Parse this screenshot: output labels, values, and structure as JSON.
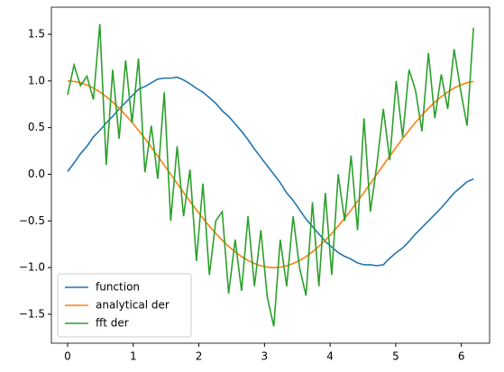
{
  "chart_data": {
    "type": "line",
    "x": [
      0,
      0.098,
      0.196,
      0.295,
      0.393,
      0.491,
      0.589,
      0.687,
      0.785,
      0.884,
      0.982,
      1.08,
      1.178,
      1.276,
      1.374,
      1.473,
      1.571,
      1.669,
      1.767,
      1.865,
      1.963,
      2.062,
      2.16,
      2.258,
      2.356,
      2.454,
      2.553,
      2.651,
      2.749,
      2.847,
      2.945,
      3.043,
      3.142,
      3.24,
      3.338,
      3.436,
      3.534,
      3.633,
      3.731,
      3.829,
      3.927,
      4.025,
      4.123,
      4.222,
      4.32,
      4.418,
      4.516,
      4.614,
      4.712,
      4.811,
      4.909,
      5.007,
      5.105,
      5.203,
      5.301,
      5.4,
      5.498,
      5.596,
      5.694,
      5.792,
      5.89,
      5.989,
      6.087,
      6.185
    ],
    "series": [
      {
        "name": "function",
        "color": "#1f77b4",
        "values": [
          0.03,
          0.12,
          0.22,
          0.3,
          0.4,
          0.47,
          0.55,
          0.62,
          0.7,
          0.77,
          0.84,
          0.91,
          0.94,
          0.98,
          1.02,
          1.03,
          1.03,
          1.04,
          1.01,
          0.97,
          0.92,
          0.88,
          0.82,
          0.76,
          0.68,
          0.62,
          0.54,
          0.46,
          0.37,
          0.27,
          0.18,
          0.09,
          0.0,
          -0.09,
          -0.2,
          -0.28,
          -0.38,
          -0.48,
          -0.56,
          -0.64,
          -0.72,
          -0.78,
          -0.84,
          -0.88,
          -0.91,
          -0.95,
          -0.97,
          -0.97,
          -0.98,
          -0.97,
          -0.9,
          -0.84,
          -0.79,
          -0.72,
          -0.64,
          -0.57,
          -0.5,
          -0.43,
          -0.36,
          -0.28,
          -0.2,
          -0.14,
          -0.08,
          -0.05
        ]
      },
      {
        "name": "analytical der",
        "color": "#ff7f0e",
        "values": [
          1,
          0.995,
          0.981,
          0.957,
          0.924,
          0.882,
          0.831,
          0.773,
          0.707,
          0.634,
          0.556,
          0.471,
          0.383,
          0.29,
          0.195,
          0.098,
          0,
          -0.098,
          -0.195,
          -0.29,
          -0.383,
          -0.471,
          -0.556,
          -0.634,
          -0.707,
          -0.773,
          -0.831,
          -0.882,
          -0.924,
          -0.957,
          -0.981,
          -0.995,
          -1,
          -0.995,
          -0.981,
          -0.957,
          -0.924,
          -0.882,
          -0.831,
          -0.773,
          -0.707,
          -0.634,
          -0.556,
          -0.471,
          -0.383,
          -0.29,
          -0.195,
          -0.098,
          0,
          0.098,
          0.195,
          0.29,
          0.383,
          0.471,
          0.556,
          0.634,
          0.707,
          0.773,
          0.831,
          0.882,
          0.924,
          0.957,
          0.981,
          0.995
        ]
      },
      {
        "name": "fft der",
        "color": "#2ca02c",
        "values": [
          0.85,
          1.17,
          0.95,
          1.05,
          0.8,
          1.61,
          0.1,
          1.12,
          0.38,
          1.22,
          0.55,
          1.24,
          0.02,
          0.52,
          -0.05,
          0.88,
          -0.5,
          0.3,
          -0.45,
          0.05,
          -0.93,
          -0.1,
          -1.08,
          -0.5,
          -0.4,
          -1.28,
          -0.7,
          -1.25,
          -0.45,
          -1.2,
          -0.6,
          -1.32,
          -1.63,
          -0.7,
          -1.2,
          -0.45,
          -1.0,
          -1.3,
          -0.3,
          -1.2,
          -0.2,
          -1.08,
          0.0,
          -0.5,
          0.2,
          -0.6,
          0.6,
          -0.4,
          0.1,
          0.7,
          0.15,
          1.0,
          0.4,
          1.12,
          0.9,
          0.46,
          1.3,
          0.6,
          1.07,
          0.7,
          1.34,
          0.9,
          0.52,
          1.57
        ]
      }
    ],
    "xlim": [
      -0.247,
      6.43
    ],
    "ylim": [
      -1.81,
      1.79
    ],
    "xticks": [
      0,
      1,
      2,
      3,
      4,
      5,
      6
    ],
    "yticks": [
      {
        "value": -1.5,
        "label": "−1.5"
      },
      {
        "value": -1.0,
        "label": "−1.0"
      },
      {
        "value": -0.5,
        "label": "−0.5"
      },
      {
        "value": 0,
        "label": "0.0"
      },
      {
        "value": 0.5,
        "label": "0.5"
      },
      {
        "value": 1.0,
        "label": "1.0"
      },
      {
        "value": 1.5,
        "label": "1.5"
      }
    ],
    "legend": "lower left"
  }
}
